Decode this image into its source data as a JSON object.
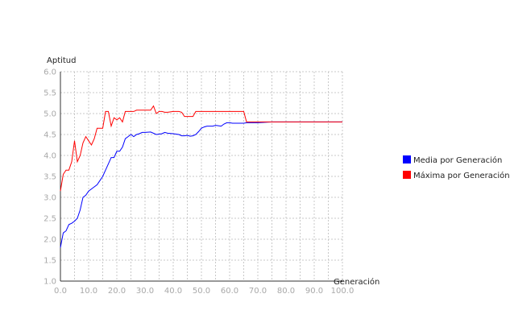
{
  "chart_data": {
    "type": "line",
    "ylabel": "Aptitud",
    "xlabel": "Generación",
    "xlim": [
      0,
      100
    ],
    "ylim": [
      1.0,
      6.0
    ],
    "x_ticks": [
      "0.0",
      "10.0",
      "20.0",
      "30.0",
      "40.0",
      "50.0",
      "60.0",
      "70.0",
      "80.0",
      "90.0",
      "100.0"
    ],
    "y_ticks": [
      "1.0",
      "1.5",
      "2.0",
      "2.5",
      "3.0",
      "3.5",
      "4.0",
      "4.5",
      "5.0",
      "5.5",
      "6.0"
    ],
    "grid": true,
    "legend_position": "right",
    "series": [
      {
        "name": "Media por Generación",
        "color": "#0000ff",
        "x": [
          0,
          1,
          2,
          3,
          4,
          5,
          6,
          7,
          8,
          9,
          10,
          11,
          12,
          13,
          14,
          15,
          16,
          17,
          18,
          19,
          20,
          21,
          22,
          23,
          24,
          25,
          26,
          27,
          28,
          29,
          30,
          32,
          34,
          36,
          37,
          38,
          40,
          42,
          43,
          44,
          45,
          46,
          47,
          48,
          49,
          50,
          51,
          52,
          53,
          54,
          55,
          56,
          57,
          58,
          59,
          60,
          61,
          62,
          63,
          64,
          65,
          66,
          68,
          70,
          75,
          80,
          85,
          90,
          95,
          100
        ],
        "values": [
          1.8,
          2.15,
          2.2,
          2.35,
          2.38,
          2.43,
          2.5,
          2.7,
          3.0,
          3.05,
          3.15,
          3.2,
          3.25,
          3.3,
          3.4,
          3.5,
          3.65,
          3.8,
          3.95,
          3.95,
          4.1,
          4.1,
          4.2,
          4.4,
          4.45,
          4.5,
          4.45,
          4.5,
          4.52,
          4.55,
          4.55,
          4.56,
          4.5,
          4.52,
          4.55,
          4.53,
          4.52,
          4.5,
          4.47,
          4.47,
          4.48,
          4.46,
          4.47,
          4.5,
          4.57,
          4.65,
          4.68,
          4.7,
          4.7,
          4.7,
          4.72,
          4.71,
          4.7,
          4.75,
          4.78,
          4.78,
          4.77,
          4.77,
          4.77,
          4.77,
          4.77,
          4.78,
          4.78,
          4.78,
          4.8,
          4.8,
          4.8,
          4.8,
          4.8,
          4.8
        ]
      },
      {
        "name": "Máxima por Generación",
        "color": "#ff0000",
        "x": [
          0,
          1,
          2,
          3,
          4,
          5,
          6,
          7,
          8,
          9,
          10,
          11,
          12,
          13,
          14,
          15,
          16,
          17,
          18,
          19,
          20,
          21,
          22,
          23,
          24,
          25,
          26,
          27,
          28,
          29,
          30,
          32,
          33,
          34,
          35,
          36,
          37,
          38,
          40,
          42,
          43,
          44,
          45,
          46,
          47,
          48,
          49,
          50,
          55,
          60,
          65,
          66,
          67,
          70,
          75,
          80,
          85,
          90,
          95,
          100
        ],
        "values": [
          3.15,
          3.55,
          3.65,
          3.65,
          3.85,
          4.35,
          3.85,
          4.0,
          4.3,
          4.45,
          4.35,
          4.25,
          4.4,
          4.65,
          4.65,
          4.65,
          5.05,
          5.05,
          4.7,
          4.9,
          4.85,
          4.9,
          4.8,
          5.05,
          5.05,
          5.05,
          5.05,
          5.08,
          5.08,
          5.08,
          5.08,
          5.08,
          5.18,
          5.0,
          5.05,
          5.05,
          5.03,
          5.03,
          5.05,
          5.05,
          5.03,
          4.93,
          4.93,
          4.93,
          4.93,
          5.05,
          5.05,
          5.05,
          5.05,
          5.05,
          5.05,
          4.8,
          4.8,
          4.8,
          4.8,
          4.8,
          4.8,
          4.8,
          4.8,
          4.8
        ]
      }
    ]
  }
}
